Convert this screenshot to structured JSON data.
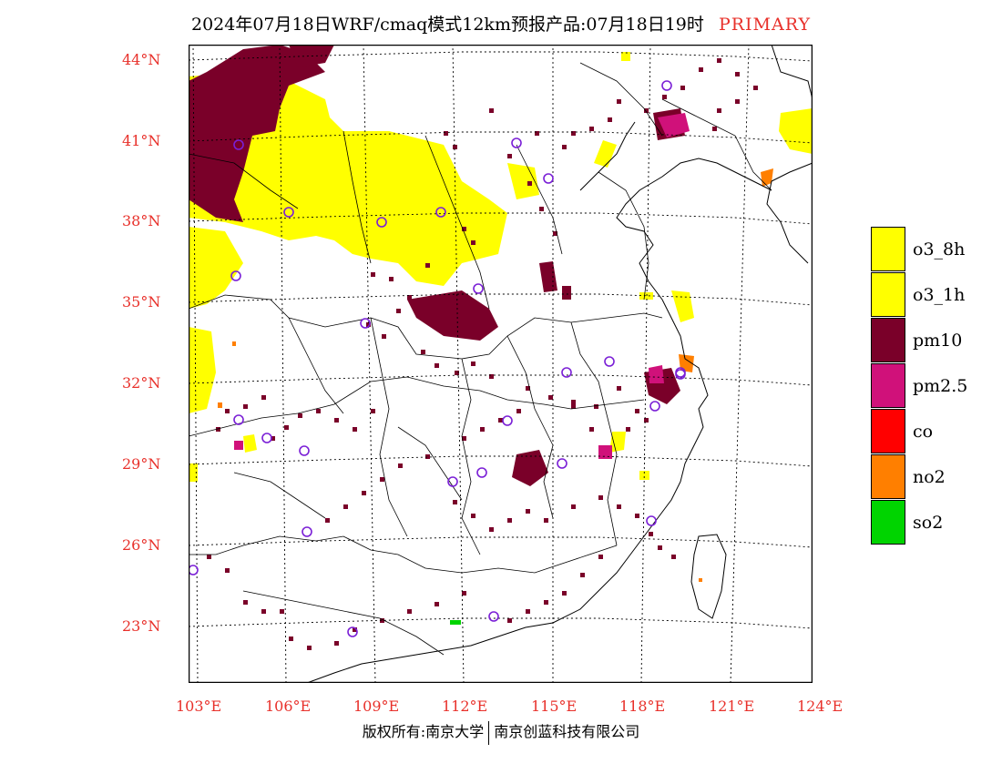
{
  "title": {
    "text": "2024年07月18日WRF/cmaq模式12km预报产品:07月18日19时",
    "tag": "PRIMARY"
  },
  "lat_labels": [
    "44°N",
    "41°N",
    "38°N",
    "35°N",
    "32°N",
    "29°N",
    "26°N",
    "23°N"
  ],
  "lon_labels": [
    "103°E",
    "106°E",
    "109°E",
    "112°E",
    "115°E",
    "118°E",
    "121°E",
    "124°E"
  ],
  "legend": [
    {
      "label": "o3_8h",
      "color": "#ffff00"
    },
    {
      "label": "o3_1h",
      "color": "#ffff00"
    },
    {
      "label": "pm10",
      "color": "#7a0029"
    },
    {
      "label": "pm2.5",
      "color": "#d0117a"
    },
    {
      "label": "co",
      "color": "#ff0000"
    },
    {
      "label": "no2",
      "color": "#ff7f00"
    },
    {
      "label": "so2",
      "color": "#00d400"
    }
  ],
  "footer": {
    "left": "版权所有:南京大学",
    "right": "南京创蓝科技有限公司"
  }
}
